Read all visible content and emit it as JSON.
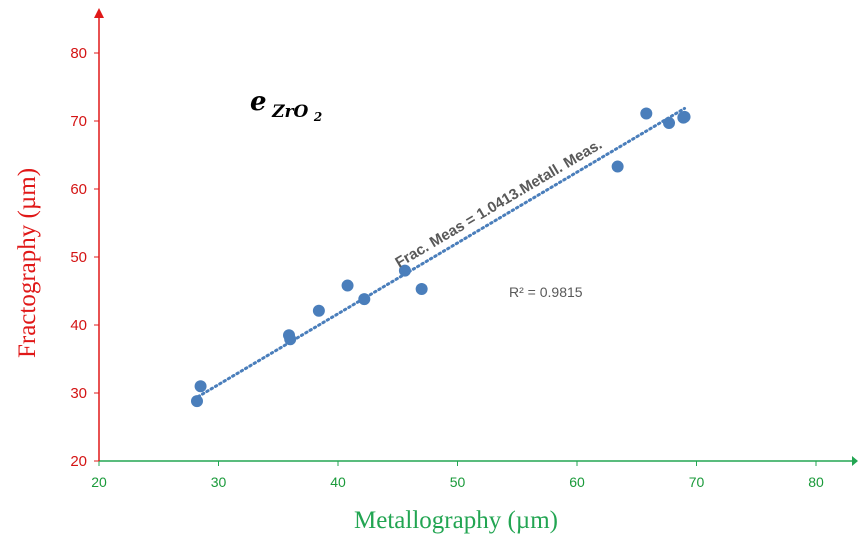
{
  "chart_data": {
    "type": "scatter",
    "title": "",
    "xlabel": "Metallography (µm)",
    "ylabel": "Fractography (µm)",
    "xlim": [
      20,
      85
    ],
    "ylim": [
      20,
      88
    ],
    "xticks": [
      20,
      30,
      40,
      50,
      60,
      70,
      80
    ],
    "yticks": [
      20,
      30,
      40,
      50,
      60,
      70,
      80
    ],
    "grid": false,
    "colors": {
      "points": "#4a7ebb",
      "trendline": "#4a7ebb",
      "x_axis": "#22a552",
      "y_axis": "#e01818"
    },
    "symbol": {
      "base": "e",
      "sub_main": "ZrO",
      "sub_index": "2"
    },
    "series": [
      {
        "points": [
          [
            28.2,
            28.8
          ],
          [
            28.5,
            31.0
          ],
          [
            35.9,
            38.5
          ],
          [
            36.0,
            37.9
          ],
          [
            38.4,
            42.1
          ],
          [
            40.8,
            45.8
          ],
          [
            42.2,
            43.8
          ],
          [
            45.6,
            48.0
          ],
          [
            47.0,
            45.3
          ],
          [
            63.4,
            63.3
          ],
          [
            65.8,
            71.1
          ],
          [
            67.7,
            69.7
          ],
          [
            68.9,
            70.5
          ],
          [
            69.0,
            70.6
          ]
        ]
      }
    ],
    "trendline": {
      "slope": 1.0413,
      "x_range": [
        28.3,
        69.0
      ],
      "equation": "Frac. Meas = 1.0413.Metall. Meas.",
      "r_squared": "R² = 0.9815"
    }
  }
}
